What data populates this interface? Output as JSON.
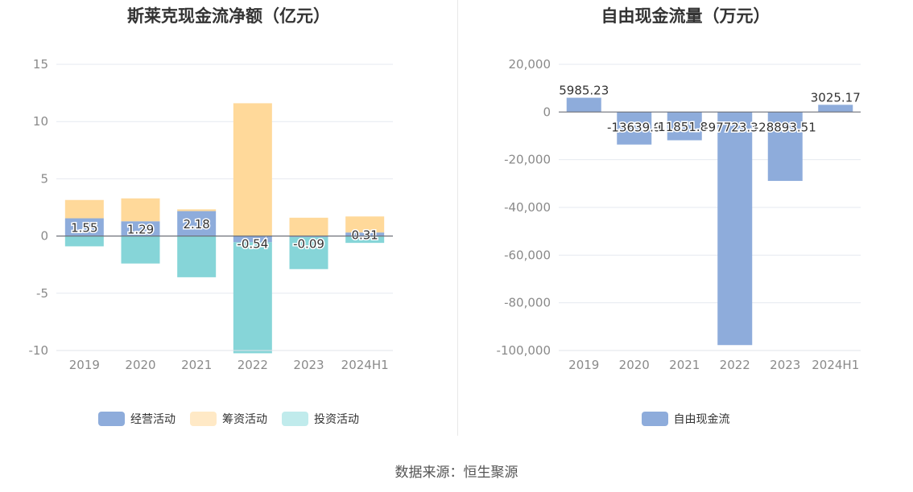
{
  "source_note": "数据来源：恒生聚源",
  "chart_data": [
    {
      "type": "bar",
      "stacked": true,
      "title": "斯莱克现金流净额（亿元）",
      "categories": [
        "2019",
        "2020",
        "2021",
        "2022",
        "2023",
        "2024H1"
      ],
      "ylim": [
        -10,
        15
      ],
      "yticks": [
        15,
        10,
        5,
        0,
        -5,
        -10
      ],
      "grid": true,
      "legend_position": "bottom",
      "series": [
        {
          "name": "经营活动",
          "color": "#8eacdb",
          "values": [
            1.55,
            1.29,
            2.18,
            -0.54,
            -0.09,
            0.31
          ],
          "labels": [
            "1.55",
            "1.29",
            "2.18",
            "-0.54",
            "-0.09",
            "0.31"
          ]
        },
        {
          "name": "筹资活动",
          "color": "#ffd99a",
          "values": [
            1.6,
            2.0,
            0.15,
            11.6,
            1.6,
            1.4
          ]
        },
        {
          "name": "投资活动",
          "color": "#86d5d8",
          "values": [
            -0.9,
            -2.4,
            -3.6,
            -9.7,
            -2.8,
            -0.6
          ]
        }
      ],
      "legend_colors": [
        "#8eacdb",
        "#ffe9c6",
        "#c0ebec"
      ]
    },
    {
      "type": "bar",
      "title": "自由现金流量（万元）",
      "categories": [
        "2019",
        "2020",
        "2021",
        "2022",
        "2023",
        "2024H1"
      ],
      "ylim": [
        -100000,
        20000
      ],
      "yticks": [
        "20,000",
        "0",
        "-20,000",
        "-40,000",
        "-60,000",
        "-80,000",
        "-100,000"
      ],
      "ytick_values": [
        20000,
        0,
        -20000,
        -40000,
        -60000,
        -80000,
        -100000
      ],
      "grid": true,
      "legend_position": "bottom",
      "series": [
        {
          "name": "自由现金流",
          "color": "#8eacdb",
          "values": [
            5985.23,
            -13639.9,
            -11851.87,
            -97723.32,
            -28893.51,
            3025.17
          ],
          "labels": [
            "5985.23",
            "-13639.9",
            "-11851.87",
            "-97723.32",
            "-28893.51",
            "3025.17"
          ]
        }
      ]
    }
  ]
}
